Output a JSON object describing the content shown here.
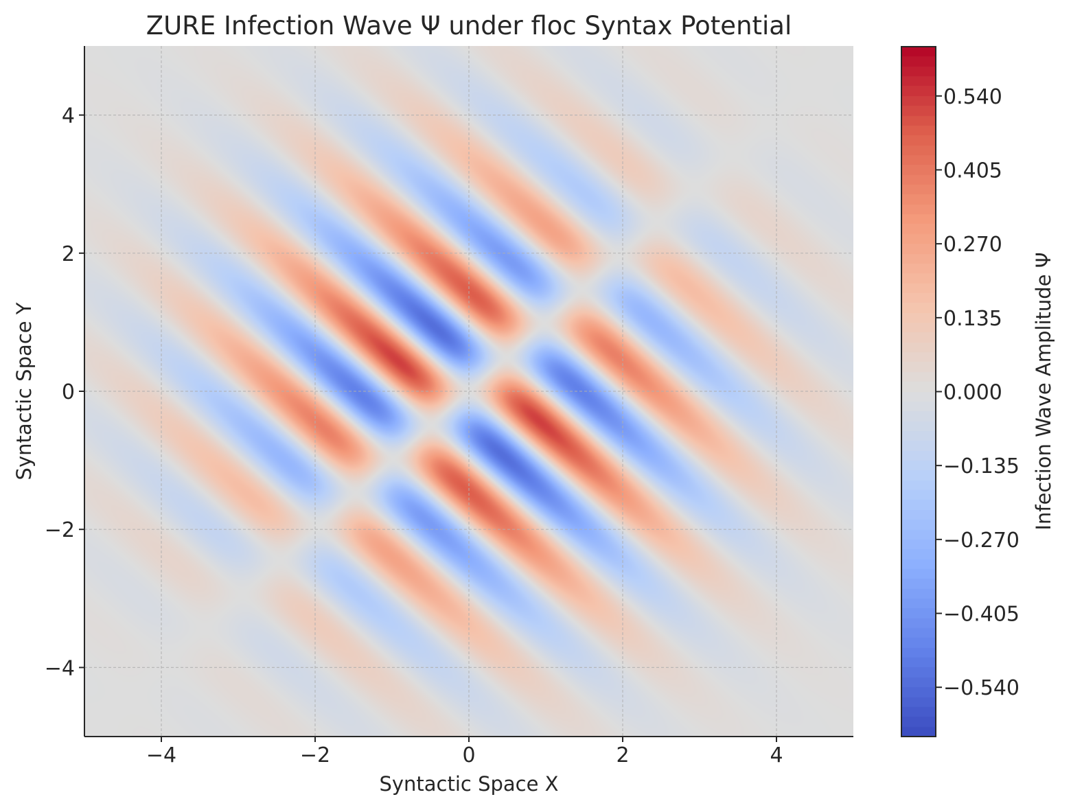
{
  "chart_data": {
    "type": "heatmap",
    "title": "ZURE Infection Wave Ψ under floc Syntax Potential",
    "xlabel": "Syntactic Space X",
    "ylabel": "Syntactic Space Y",
    "xlim": [
      -5,
      5
    ],
    "ylim": [
      -5,
      5
    ],
    "x_ticks": [
      -4,
      -2,
      0,
      2,
      4
    ],
    "y_ticks": [
      -4,
      -2,
      0,
      2,
      4
    ],
    "x_tick_labels": [
      "−4",
      "−2",
      "0",
      "2",
      "4"
    ],
    "y_tick_labels": [
      "−4",
      "−2",
      "0",
      "2",
      "4"
    ],
    "grid": true,
    "colormap": "coolwarm",
    "colorbar": {
      "label": "Infection Wave Amplitude Ψ",
      "vmin": -0.63,
      "vmax": 0.63,
      "ticks": [
        0.54,
        0.405,
        0.27,
        0.135,
        0.0,
        -0.135,
        -0.27,
        -0.405,
        -0.54
      ],
      "tick_labels": [
        "0.540",
        "0.405",
        "0.270",
        "0.135",
        "0.000",
        "−0.135",
        "−0.270",
        "−0.405",
        "−0.540"
      ]
    },
    "field": {
      "description_values": "diagonal interference stripes along x+y, gaussian envelope centred at origin, antisymmetric across the x=y line",
      "max_value": 0.63,
      "min_value": -0.63
    }
  }
}
